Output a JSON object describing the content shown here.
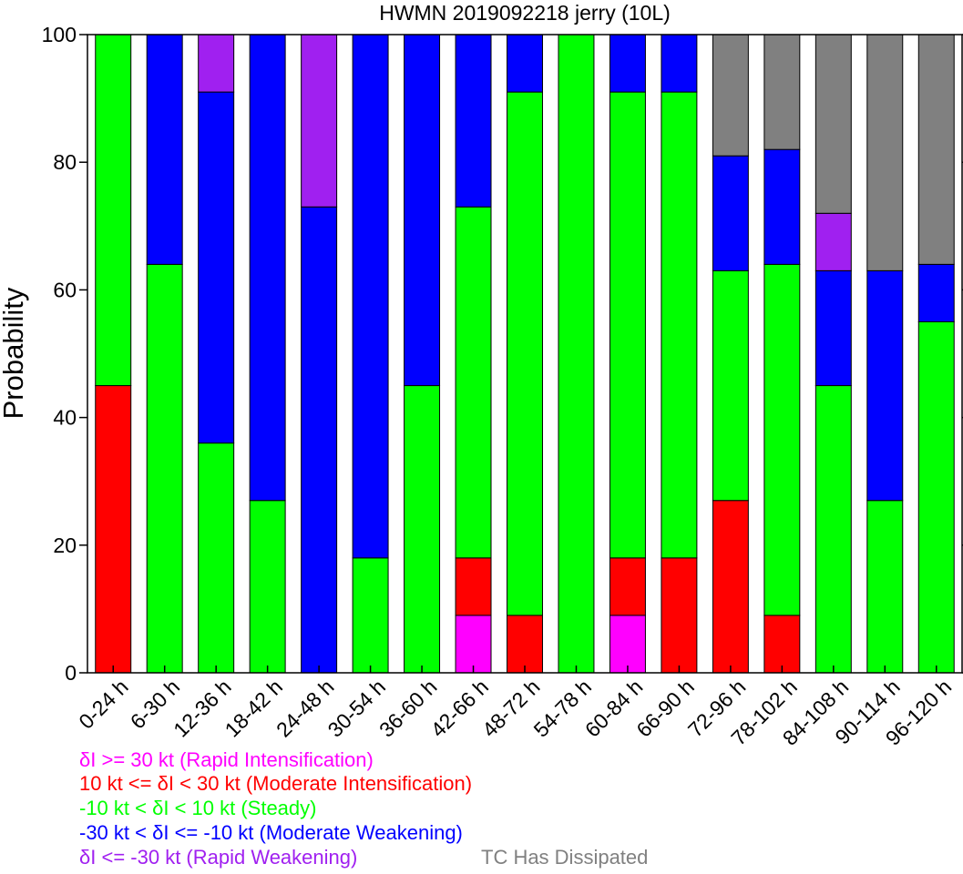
{
  "chart_data": {
    "type": "bar",
    "stacked": true,
    "title": "HWMN 2019092218 jerry (10L)",
    "xlabel": "",
    "ylabel": "Probability",
    "ylim": [
      0,
      100
    ],
    "yticks": [
      "0",
      "20",
      "40",
      "60",
      "80",
      "100"
    ],
    "grid": false,
    "categories": [
      "0-24 h",
      "6-30 h",
      "12-36 h",
      "18-42 h",
      "24-48 h",
      "30-54 h",
      "36-60 h",
      "42-66 h",
      "48-72 h",
      "54-78 h",
      "60-84 h",
      "66-90 h",
      "72-96 h",
      "78-102 h",
      "84-108 h",
      "90-114 h",
      "96-120 h"
    ],
    "series": [
      {
        "name": "δI >= 30 kt (Rapid Intensification)",
        "color": "#ff00ff",
        "values": [
          0,
          0,
          0,
          0,
          0,
          0,
          0,
          9,
          0,
          0,
          9,
          0,
          0,
          0,
          0,
          0,
          0
        ]
      },
      {
        "name": "10 kt <= δI < 30 kt (Moderate Intensification)",
        "color": "#ff0000",
        "values": [
          45,
          0,
          0,
          0,
          0,
          0,
          0,
          9,
          9,
          0,
          9,
          18,
          27,
          9,
          0,
          0,
          0
        ]
      },
      {
        "name": "-10 kt < δI < 10 kt (Steady)",
        "color": "#00ff00",
        "values": [
          55,
          64,
          36,
          27,
          0,
          18,
          45,
          55,
          82,
          100,
          73,
          73,
          36,
          55,
          45,
          27,
          55
        ]
      },
      {
        "name": "-30 kt < δI <= -10 kt (Moderate Weakening)",
        "color": "#0000ff",
        "values": [
          0,
          36,
          55,
          73,
          73,
          82,
          55,
          27,
          9,
          0,
          9,
          9,
          18,
          18,
          18,
          36,
          9
        ]
      },
      {
        "name": "δI <= -30 kt (Rapid Weakening)",
        "color": "#a020f0",
        "values": [
          0,
          0,
          9,
          0,
          27,
          0,
          0,
          0,
          0,
          0,
          0,
          0,
          0,
          0,
          9,
          0,
          0
        ]
      },
      {
        "name": "TC Has Dissipated",
        "color": "#808080",
        "values": [
          0,
          0,
          0,
          0,
          0,
          0,
          0,
          0,
          0,
          0,
          0,
          0,
          19,
          18,
          28,
          37,
          36
        ]
      }
    ]
  }
}
